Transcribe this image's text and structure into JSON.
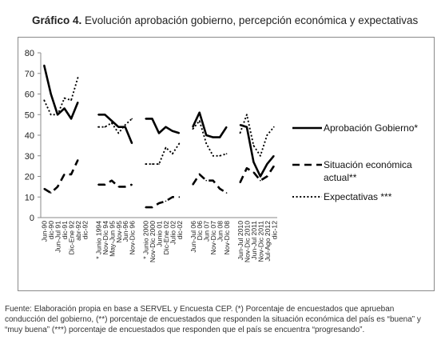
{
  "title": {
    "prefix": "Gráfico 4.",
    "text": "Evolución aprobación gobierno, percepción económica y expectativas"
  },
  "source_note": "Fuente: Elaboración propia en base a SERVEL y Encuesta CEP. (*) Porcentaje de encuestados que aprueban conducción del gobierno, (**) porcentaje de encuestados que responden la situación económica del país es “buena” y “muy buena” (***) porcentaje de encuestados que responden que el país se encuentra “progresando”.",
  "chart_data": {
    "type": "line",
    "ylim": [
      0,
      80
    ],
    "yticks": [
      0,
      10,
      20,
      30,
      40,
      50,
      60,
      70,
      80
    ],
    "grid": false,
    "legend_position": "right",
    "categories": [
      "Jun-90",
      "dic-90",
      "Jun-Jul 91",
      "dic-91",
      "Dic-Ene 92",
      "abr-92",
      "dic-92",
      "",
      "* Junio 1994",
      "Nov-Dic 94",
      "May-Jun 95",
      "Nov-95",
      "Jun-96",
      "Nov-Dic 96",
      "",
      "* Junio 2000",
      "Nov-Dic 2000",
      "Junio 01",
      "Dic-Ene 02",
      "Julio 02",
      "dic-02",
      "",
      "Jun-Jul 06",
      "Dic 06",
      "Jun 07",
      "Nov-Dic 07",
      "Jun 08",
      "Nov-Dic 08",
      "",
      "Jun-Jul 2010",
      "Nov-Dic 2010",
      "Jun-Jul 2011",
      "Nov-Dic 2011",
      "Jul-Ago 2012",
      "dic-12"
    ],
    "series": [
      {
        "name": "Aprobación Gobierno*",
        "style": "solid",
        "values": [
          74,
          60,
          50,
          53,
          48,
          56,
          null,
          null,
          50,
          50,
          47,
          44,
          44,
          36,
          null,
          48,
          48,
          41,
          44,
          42,
          41,
          null,
          44,
          51,
          40,
          39,
          39,
          44,
          null,
          45,
          44,
          27,
          20,
          26,
          30
        ]
      },
      {
        "name": "Situación económica actual**",
        "style": "dashed",
        "values": [
          14,
          12,
          15,
          21,
          21,
          28,
          null,
          null,
          16,
          16,
          18,
          15,
          15,
          16,
          null,
          5,
          5,
          7,
          8,
          10,
          10,
          null,
          16,
          21,
          18,
          18,
          14,
          12,
          null,
          17,
          24,
          22,
          18,
          20,
          25
        ]
      },
      {
        "name": "Expectativas ***",
        "style": "dotted",
        "values": [
          57,
          50,
          50,
          58,
          57,
          68,
          null,
          null,
          44,
          44,
          46,
          41,
          45,
          48,
          null,
          26,
          26,
          26,
          34,
          31,
          36,
          null,
          43,
          47,
          36,
          30,
          30,
          31,
          null,
          41,
          50,
          35,
          30,
          40,
          44
        ]
      }
    ]
  }
}
